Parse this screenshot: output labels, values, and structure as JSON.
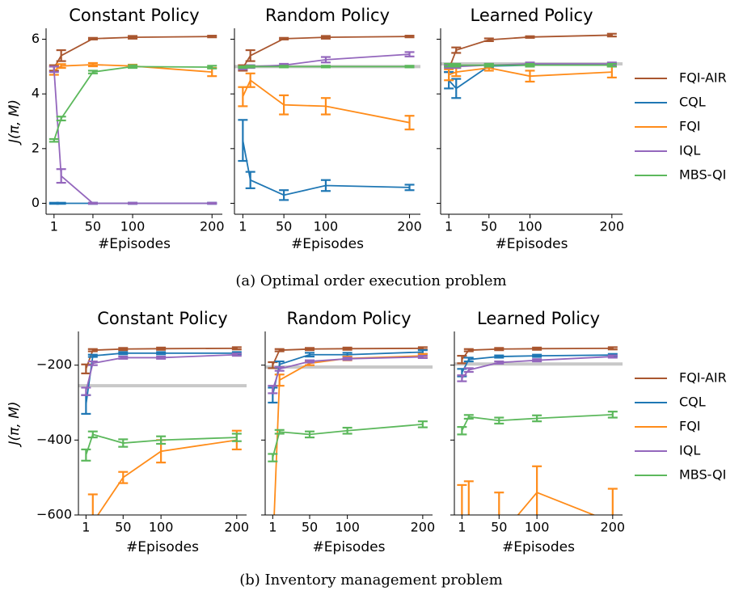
{
  "chart_data": [
    {
      "type": "line",
      "caption": "(a)  Optimal order execution problem",
      "xlabel": "#Episodes",
      "ylabel": "J(π, M)",
      "x": [
        1,
        10,
        50,
        100,
        200
      ],
      "xlim": [
        -9,
        213
      ],
      "xticks": [
        1,
        50,
        100,
        200
      ],
      "ylim": [
        -0.4,
        6.4
      ],
      "yticks": [
        0,
        2,
        4,
        6
      ],
      "series": [
        {
          "name": "FQI-AIR",
          "color": "#a9562f"
        },
        {
          "name": "CQL",
          "color": "#1f77b4"
        },
        {
          "name": "FQI",
          "color": "#ff8c1a"
        },
        {
          "name": "IQL",
          "color": "#9467bd"
        },
        {
          "name": "MBS-QI",
          "color": "#5cb85c"
        }
      ],
      "panels": [
        {
          "title": "Constant Policy",
          "series": [
            {
              "values": [
                4.95,
                5.4,
                6.02,
                6.07,
                6.1
              ],
              "errors": [
                0.1,
                0.2,
                0.03,
                0.05,
                0.03
              ]
            },
            {
              "values": [
                0,
                0,
                0,
                0,
                0
              ],
              "errors": [
                0.02,
                0.02,
                0.02,
                0.02,
                0.02
              ]
            },
            {
              "values": [
                4.85,
                5.02,
                5.07,
                5.02,
                4.8
              ],
              "errors": [
                0.15,
                0.07,
                0.06,
                0.05,
                0.15
              ]
            },
            {
              "values": [
                4.9,
                1.0,
                0,
                0,
                0
              ],
              "errors": [
                0.1,
                0.25,
                0.02,
                0.02,
                0.02
              ]
            },
            {
              "values": [
                2.3,
                3.1,
                4.8,
                5.0,
                4.98
              ],
              "errors": [
                0.05,
                0.07,
                0.05,
                0.05,
                0.05
              ]
            }
          ]
        },
        {
          "title": "Random Policy",
          "reference": 5.0,
          "series": [
            {
              "values": [
                4.95,
                5.4,
                6.02,
                6.07,
                6.1
              ],
              "errors": [
                0.1,
                0.2,
                0.03,
                0.05,
                0.03
              ]
            },
            {
              "values": [
                2.3,
                0.85,
                0.3,
                0.65,
                0.58
              ],
              "errors": [
                0.75,
                0.3,
                0.18,
                0.2,
                0.1
              ]
            },
            {
              "values": [
                3.9,
                4.5,
                3.6,
                3.55,
                2.95
              ],
              "errors": [
                0.35,
                0.25,
                0.35,
                0.3,
                0.25
              ]
            },
            {
              "values": [
                4.95,
                5.0,
                5.05,
                5.25,
                5.45
              ],
              "errors": [
                0.05,
                0.05,
                0.05,
                0.1,
                0.08
              ]
            },
            {
              "values": [
                4.98,
                5.0,
                5.0,
                5.0,
                5.0
              ],
              "errors": [
                0.03,
                0.03,
                0.03,
                0.03,
                0.03
              ]
            }
          ]
        },
        {
          "title": "Learned Policy",
          "reference": 5.1,
          "series": [
            {
              "values": [
                4.9,
                5.6,
                5.98,
                6.08,
                6.15
              ],
              "errors": [
                0.1,
                0.1,
                0.05,
                0.03,
                0.05
              ]
            },
            {
              "values": [
                4.5,
                4.2,
                5.02,
                5.05,
                5.05
              ],
              "errors": [
                0.3,
                0.35,
                0.05,
                0.05,
                0.05
              ]
            },
            {
              "values": [
                4.7,
                4.8,
                4.95,
                4.65,
                4.8
              ],
              "errors": [
                0.2,
                0.15,
                0.1,
                0.2,
                0.2
              ]
            },
            {
              "values": [
                5.0,
                5.0,
                5.05,
                5.1,
                5.1
              ],
              "errors": [
                0.05,
                0.05,
                0.05,
                0.05,
                0.05
              ]
            },
            {
              "values": [
                5.05,
                5.05,
                5.05,
                5.05,
                5.05
              ],
              "errors": [
                0.05,
                0.05,
                0.05,
                0.05,
                0.05
              ]
            }
          ]
        }
      ]
    },
    {
      "type": "line",
      "caption": "(b)  Inventory management problem",
      "xlabel": "#Episodes",
      "ylabel": "J(π, M)",
      "x": [
        1,
        10,
        50,
        100,
        200
      ],
      "xlim": [
        -9,
        213
      ],
      "xticks": [
        1,
        50,
        100,
        200
      ],
      "ylim": [
        -600,
        -110
      ],
      "yticks": [
        {
          "value": -600,
          "label": "−600"
        },
        {
          "value": -400,
          "label": "−400"
        },
        {
          "value": -200,
          "label": "−200"
        }
      ],
      "series": [
        {
          "name": "FQI-AIR",
          "color": "#a9562f"
        },
        {
          "name": "CQL",
          "color": "#1f77b4"
        },
        {
          "name": "FQI",
          "color": "#ff8c1a"
        },
        {
          "name": "IQL",
          "color": "#9467bd"
        },
        {
          "name": "MBS-QI",
          "color": "#5cb85c"
        }
      ],
      "panels": [
        {
          "title": "Constant Policy",
          "reference": -255,
          "series": [
            {
              "values": [
                -210,
                -160,
                -157,
                -156,
                -155
              ],
              "errors": [
                12,
                3,
                3,
                3,
                3
              ]
            },
            {
              "values": [
                -305,
                -175,
                -168,
                -168,
                -168
              ],
              "errors": [
                25,
                3,
                3,
                3,
                3
              ]
            },
            {
              "values": [
                -700,
                -620,
                -500,
                -430,
                -400
              ],
              "errors": [
                60,
                75,
                15,
                30,
                25
              ]
            },
            {
              "values": [
                -270,
                -195,
                -180,
                -180,
                -172
              ],
              "errors": [
                10,
                5,
                3,
                3,
                3
              ]
            },
            {
              "values": [
                -440,
                -385,
                -408,
                -400,
                -393
              ],
              "errors": [
                15,
                8,
                10,
                10,
                10
              ]
            }
          ]
        },
        {
          "title": "Random Policy",
          "reference": -205,
          "series": [
            {
              "values": [
                -200,
                -160,
                -157,
                -156,
                -155
              ],
              "errors": [
                8,
                3,
                3,
                3,
                3
              ]
            },
            {
              "values": [
                -280,
                -198,
                -172,
                -172,
                -165
              ],
              "errors": [
                20,
                8,
                5,
                5,
                5
              ]
            },
            {
              "values": [
                -700,
                -240,
                -195,
                -182,
                -175
              ],
              "errors": [
                50,
                15,
                5,
                5,
                5
              ]
            },
            {
              "values": [
                -265,
                -210,
                -190,
                -183,
                -178
              ],
              "errors": [
                10,
                5,
                3,
                3,
                3
              ]
            },
            {
              "values": [
                -447,
                -378,
                -385,
                -375,
                -358
              ],
              "errors": [
                10,
                5,
                8,
                8,
                8
              ]
            }
          ]
        },
        {
          "title": "Learned Policy",
          "reference": -197,
          "series": [
            {
              "values": [
                -185,
                -160,
                -157,
                -156,
                -155
              ],
              "errors": [
                10,
                3,
                3,
                3,
                3
              ]
            },
            {
              "values": [
                -220,
                -185,
                -177,
                -175,
                -173
              ],
              "errors": [
                10,
                5,
                3,
                3,
                3
              ]
            },
            {
              "values": [
                -620,
                -640,
                -660,
                -540,
                -620
              ],
              "errors": [
                100,
                130,
                120,
                70,
                90
              ]
            },
            {
              "values": [
                -235,
                -213,
                -193,
                -187,
                -177
              ],
              "errors": [
                8,
                5,
                3,
                3,
                3
              ]
            },
            {
              "values": [
                -375,
                -338,
                -348,
                -342,
                -332
              ],
              "errors": [
                10,
                5,
                8,
                8,
                8
              ]
            }
          ]
        }
      ]
    }
  ]
}
